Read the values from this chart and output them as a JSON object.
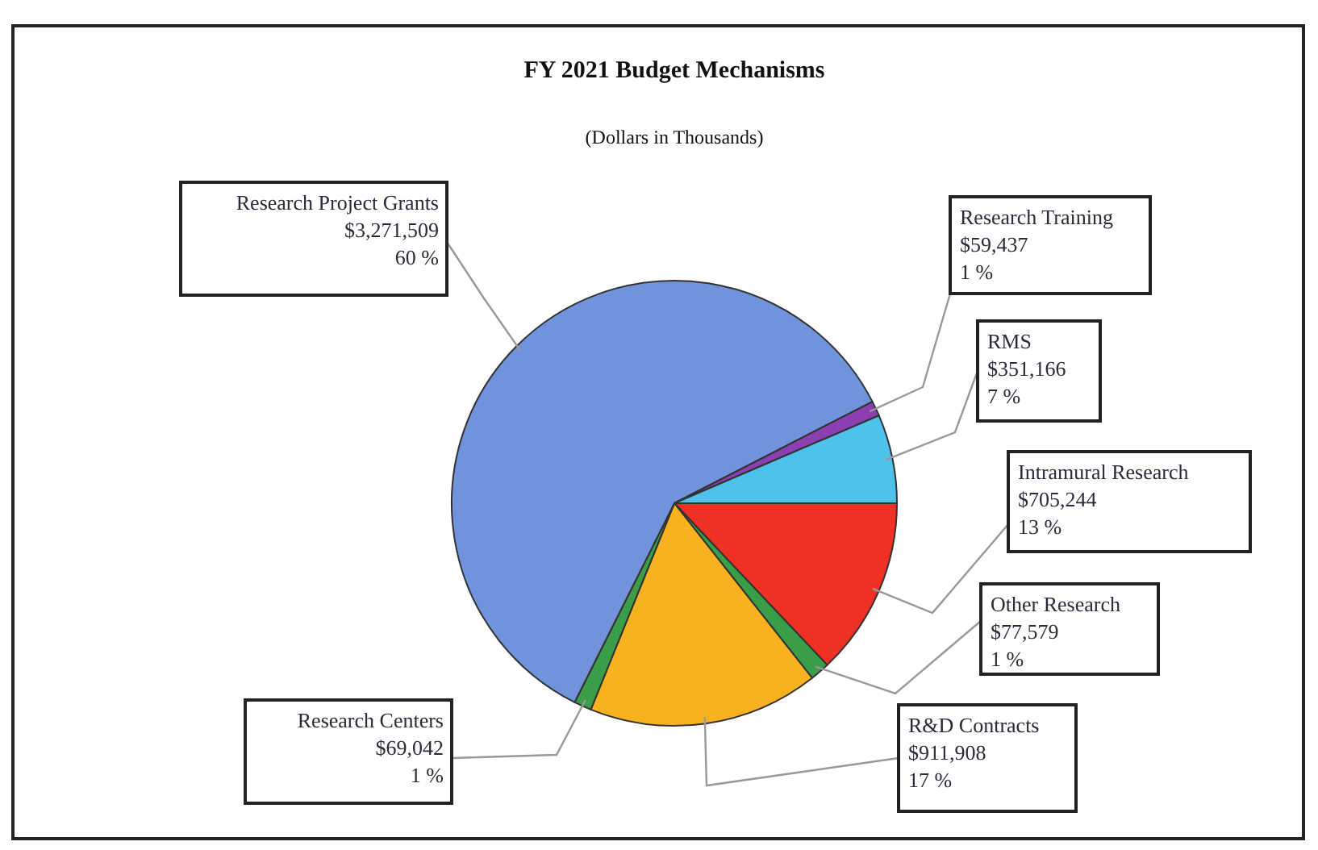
{
  "chart_data": {
    "type": "pie",
    "title": "FY 2021 Budget Mechanisms",
    "subtitle": "(Dollars in Thousands)",
    "categories": [
      "Intramural Research",
      "Other Research",
      "R&D Contracts",
      "Research Centers",
      "Research Project Grants",
      "Research Training",
      "RMS"
    ],
    "values": [
      705244,
      77579,
      911908,
      69042,
      3271509,
      59437,
      351166
    ],
    "colors": [
      "#ee3124",
      "#3a9d48",
      "#f9b21f",
      "#3a9d48",
      "#7193dc",
      "#8b3fb0",
      "#4fc2ec"
    ],
    "value_labels": [
      "$705,244\n13 %",
      "$77,579\n1 %",
      "$911,908\n17 %",
      "$69,042\n1 %",
      "$3,271,509\n60 %",
      "$59,437\n1 %",
      "$351,166\n7 %"
    ]
  }
}
